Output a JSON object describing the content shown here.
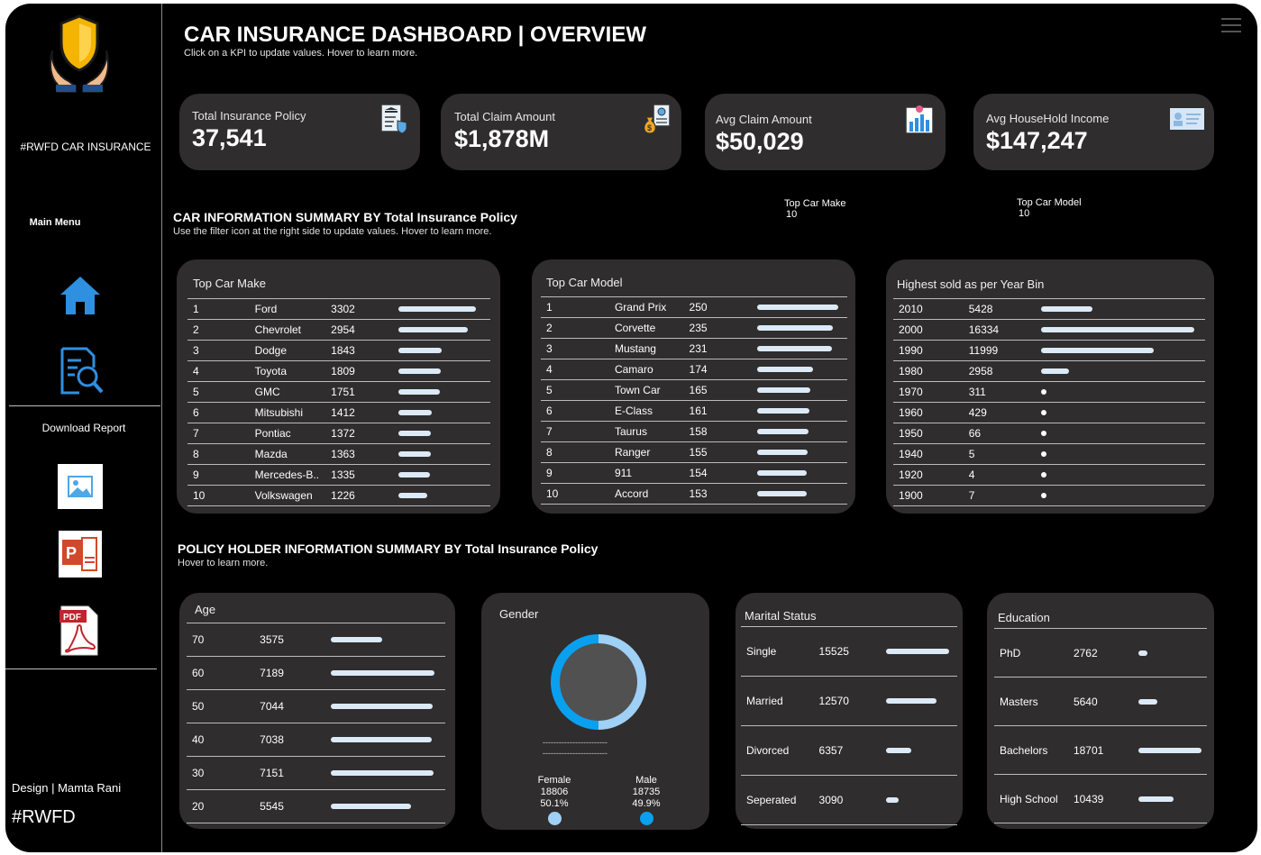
{
  "sidebar": {
    "brand": "#RWFD CAR INSURANCE",
    "main_menu": "Main Menu",
    "download_report": "Download Report",
    "design_credit": "Design | Mamta Rani",
    "hashtag": "#RWFD",
    "icons": [
      "insurance-shield-hands-icon",
      "home-icon",
      "document-search-icon",
      "image-file-icon",
      "powerpoint-file-icon",
      "pdf-file-icon"
    ]
  },
  "header": {
    "title": "CAR INSURANCE DASHBOARD | OVERVIEW",
    "subtitle": "Click on a KPI to update values. Hover to learn more."
  },
  "kpis": [
    {
      "label": "Total Insurance Policy",
      "value": "37,541",
      "icon": "policy-document-icon"
    },
    {
      "label": "Total Claim Amount",
      "value": "$1,878M",
      "icon": "money-bag-icon"
    },
    {
      "label": "Avg Claim Amount",
      "value": "$50,029",
      "icon": "bar-chart-icon"
    },
    {
      "label": "Avg HouseHold Income",
      "value": "$147,247",
      "icon": "id-card-icon"
    }
  ],
  "car_section": {
    "title": "CAR INFORMATION SUMMARY BY Total Insurance Policy",
    "subtitle": "Use the filter icon at the right side to update values. Hover to learn more.",
    "filter_make_label": "Top Car Make",
    "filter_make_value": "10",
    "filter_model_label": "Top Car Model",
    "filter_model_value": "10"
  },
  "top_car_make": {
    "title": "Top Car Make",
    "rows": [
      {
        "rank": "1",
        "name": "Ford",
        "value": "3302",
        "frac": 1.0
      },
      {
        "rank": "2",
        "name": "Chevrolet",
        "value": "2954",
        "frac": 0.895
      },
      {
        "rank": "3",
        "name": "Dodge",
        "value": "1843",
        "frac": 0.558
      },
      {
        "rank": "4",
        "name": "Toyota",
        "value": "1809",
        "frac": 0.548
      },
      {
        "rank": "5",
        "name": "GMC",
        "value": "1751",
        "frac": 0.53
      },
      {
        "rank": "6",
        "name": "Mitsubishi",
        "value": "1412",
        "frac": 0.428
      },
      {
        "rank": "7",
        "name": "Pontiac",
        "value": "1372",
        "frac": 0.416
      },
      {
        "rank": "8",
        "name": "Mazda",
        "value": "1363",
        "frac": 0.413
      },
      {
        "rank": "9",
        "name": "Mercedes-B..",
        "value": "1335",
        "frac": 0.404
      },
      {
        "rank": "10",
        "name": "Volkswagen",
        "value": "1226",
        "frac": 0.371
      }
    ]
  },
  "top_car_model": {
    "title": "Top Car Model",
    "rows": [
      {
        "rank": "1",
        "name": "Grand Prix",
        "value": "250",
        "frac": 1.0
      },
      {
        "rank": "2",
        "name": "Corvette",
        "value": "235",
        "frac": 0.94
      },
      {
        "rank": "3",
        "name": "Mustang",
        "value": "231",
        "frac": 0.924
      },
      {
        "rank": "4",
        "name": "Camaro",
        "value": "174",
        "frac": 0.696
      },
      {
        "rank": "5",
        "name": "Town Car",
        "value": "165",
        "frac": 0.66
      },
      {
        "rank": "6",
        "name": "E-Class",
        "value": "161",
        "frac": 0.644
      },
      {
        "rank": "7",
        "name": "Taurus",
        "value": "158",
        "frac": 0.632
      },
      {
        "rank": "8",
        "name": "Ranger",
        "value": "155",
        "frac": 0.62
      },
      {
        "rank": "9",
        "name": "911",
        "value": "154",
        "frac": 0.616
      },
      {
        "rank": "10",
        "name": "Accord",
        "value": "153",
        "frac": 0.612
      }
    ]
  },
  "year_bin": {
    "title": "Highest sold  as per Year Bin",
    "rows": [
      {
        "year": "2010",
        "value": "5428",
        "frac": 0.332
      },
      {
        "year": "2000",
        "value": "16334",
        "frac": 1.0
      },
      {
        "year": "1990",
        "value": "11999",
        "frac": 0.735
      },
      {
        "year": "1980",
        "value": "2958",
        "frac": 0.181
      },
      {
        "year": "1970",
        "value": "311",
        "frac": 0.019
      },
      {
        "year": "1960",
        "value": "429",
        "frac": 0.026
      },
      {
        "year": "1950",
        "value": "66",
        "frac": 0.004
      },
      {
        "year": "1940",
        "value": "5",
        "frac": 0.0003
      },
      {
        "year": "1920",
        "value": "4",
        "frac": 0.0002
      },
      {
        "year": "1900",
        "value": "7",
        "frac": 0.0004
      }
    ]
  },
  "policy_section": {
    "title": "POLICY HOLDER INFORMATION SUMMARY BY Total Insurance Policy",
    "subtitle": "Hover to learn more."
  },
  "age": {
    "title": "Age",
    "rows": [
      {
        "label": "70",
        "value": "3575",
        "frac": 0.497
      },
      {
        "label": "60",
        "value": "7189",
        "frac": 1.0
      },
      {
        "label": "50",
        "value": "7044",
        "frac": 0.98
      },
      {
        "label": "40",
        "value": "7038",
        "frac": 0.979
      },
      {
        "label": "30",
        "value": "7151",
        "frac": 0.995
      },
      {
        "label": "20",
        "value": "5545",
        "frac": 0.771
      }
    ]
  },
  "gender": {
    "title": "Gender",
    "dashes": "------------------------",
    "female": {
      "label": "Female",
      "count": "18806",
      "pct": "50.1%",
      "share": 0.501,
      "color": "#9fd0f5"
    },
    "male": {
      "label": "Male",
      "count": "18735",
      "pct": "49.9%",
      "share": 0.499,
      "color": "#0aa0f0"
    }
  },
  "marital": {
    "title": "Marital Status",
    "rows": [
      {
        "label": "Single",
        "value": "15525",
        "frac": 1.0
      },
      {
        "label": "Married",
        "value": "12570",
        "frac": 0.81
      },
      {
        "label": "Divorced",
        "value": "6357",
        "frac": 0.409
      },
      {
        "label": "Seperated",
        "value": "3090",
        "frac": 0.199
      }
    ]
  },
  "education": {
    "title": "Education",
    "rows": [
      {
        "label": "PhD",
        "value": "2762",
        "frac": 0.148
      },
      {
        "label": "Masters",
        "value": "5640",
        "frac": 0.302
      },
      {
        "label": "Bachelors",
        "value": "18701",
        "frac": 1.0
      },
      {
        "label": "High School",
        "value": "10439",
        "frac": 0.558
      }
    ]
  },
  "colors": {
    "background": "#000000",
    "card": "#2f2d2d",
    "bar": "#dce9f7",
    "accent_blue": "#0aa0f0",
    "icon_blue": "#2f8fe0"
  }
}
